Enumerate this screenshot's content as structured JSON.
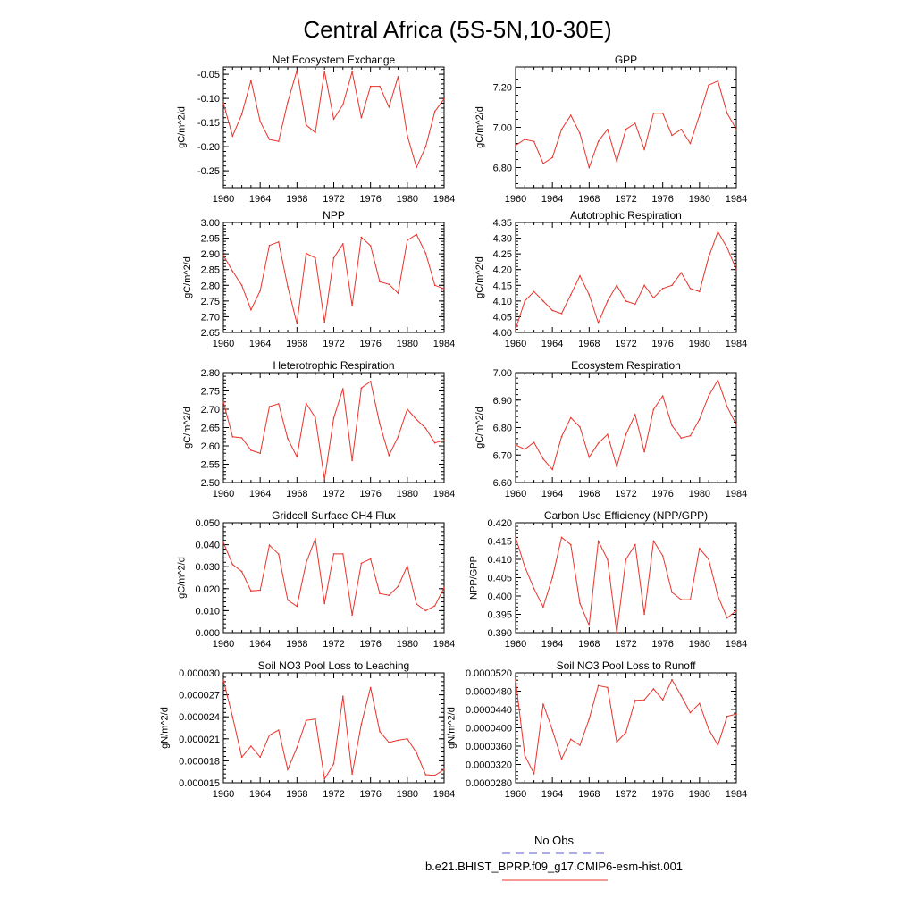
{
  "figure_title": "Central Africa (5S-5N,10-30E)",
  "legend": {
    "entries": [
      {
        "name": "No Obs",
        "color": "#5a5ad2",
        "dash": true
      },
      {
        "name": "b.e21.BHIST_BPRP.f09_g17.CMIP6-esm-hist.001",
        "color": "#e8332a",
        "dash": false
      }
    ]
  },
  "colors": {
    "series": "#e8332a",
    "axes": "#000000"
  },
  "chart_data": [
    {
      "type": "line",
      "title": "Net Ecosystem Exchange",
      "ylabel": "gC/m^2/d",
      "x": [
        1960,
        1961,
        1962,
        1963,
        1964,
        1965,
        1966,
        1967,
        1968,
        1969,
        1970,
        1971,
        1972,
        1973,
        1974,
        1975,
        1976,
        1977,
        1978,
        1979,
        1980,
        1981,
        1982,
        1983,
        1984
      ],
      "values": [
        -0.11,
        -0.178,
        -0.133,
        -0.063,
        -0.148,
        -0.185,
        -0.189,
        -0.108,
        -0.042,
        -0.155,
        -0.171,
        -0.044,
        -0.143,
        -0.113,
        -0.045,
        -0.14,
        -0.075,
        -0.075,
        -0.118,
        -0.055,
        -0.177,
        -0.243,
        -0.2,
        -0.127,
        -0.101
      ],
      "xlim": [
        1960,
        1984
      ],
      "ylim": [
        -0.285,
        -0.035
      ],
      "xticks": [
        "1960",
        "1964",
        "1968",
        "1972",
        "1976",
        "1980",
        "1984"
      ],
      "yticks": [
        "-0.05",
        "-0.10",
        "-0.15",
        "-0.20",
        "-0.25"
      ]
    },
    {
      "type": "line",
      "title": "GPP",
      "ylabel": "gC/m^2/d",
      "x": [
        1960,
        1961,
        1962,
        1963,
        1964,
        1965,
        1966,
        1967,
        1968,
        1969,
        1970,
        1971,
        1972,
        1973,
        1974,
        1975,
        1976,
        1977,
        1978,
        1979,
        1980,
        1981,
        1982,
        1983,
        1984
      ],
      "values": [
        6.91,
        6.94,
        6.93,
        6.82,
        6.85,
        6.99,
        7.06,
        6.97,
        6.8,
        6.93,
        6.99,
        6.83,
        6.99,
        7.02,
        6.89,
        7.07,
        7.07,
        6.96,
        6.99,
        6.92,
        7.06,
        7.21,
        7.23,
        7.07,
        6.99
      ],
      "xlim": [
        1960,
        1984
      ],
      "ylim": [
        6.7,
        7.3
      ],
      "xticks": [
        "1960",
        "1964",
        "1968",
        "1972",
        "1976",
        "1980",
        "1984"
      ],
      "yticks": [
        "7.20",
        "7.00",
        "6.80"
      ]
    },
    {
      "type": "line",
      "title": "NPP",
      "ylabel": "gC/m^2/d",
      "x": [
        1960,
        1961,
        1962,
        1963,
        1964,
        1965,
        1966,
        1967,
        1968,
        1969,
        1970,
        1971,
        1972,
        1973,
        1974,
        1975,
        1976,
        1977,
        1978,
        1979,
        1980,
        1981,
        1982,
        1983,
        1984
      ],
      "values": [
        2.895,
        2.845,
        2.8,
        2.722,
        2.783,
        2.927,
        2.938,
        2.796,
        2.678,
        2.902,
        2.887,
        2.682,
        2.887,
        2.932,
        2.735,
        2.953,
        2.926,
        2.811,
        2.803,
        2.775,
        2.943,
        2.962,
        2.902,
        2.8,
        2.789
      ],
      "xlim": [
        1960,
        1984
      ],
      "ylim": [
        2.65,
        3.0
      ],
      "xticks": [
        "1960",
        "1964",
        "1968",
        "1972",
        "1976",
        "1980",
        "1984"
      ],
      "yticks": [
        "3.00",
        "2.95",
        "2.90",
        "2.85",
        "2.80",
        "2.75",
        "2.70",
        "2.65"
      ]
    },
    {
      "type": "line",
      "title": "Autotrophic Respiration",
      "ylabel": "gC/m^2/d",
      "x": [
        1960,
        1961,
        1962,
        1963,
        1964,
        1965,
        1966,
        1967,
        1968,
        1969,
        1970,
        1971,
        1972,
        1973,
        1974,
        1975,
        1976,
        1977,
        1978,
        1979,
        1980,
        1981,
        1982,
        1983,
        1984
      ],
      "values": [
        4.01,
        4.1,
        4.13,
        4.1,
        4.07,
        4.06,
        4.12,
        4.18,
        4.12,
        4.03,
        4.1,
        4.15,
        4.1,
        4.09,
        4.15,
        4.11,
        4.14,
        4.15,
        4.19,
        4.14,
        4.13,
        4.24,
        4.32,
        4.27,
        4.2
      ],
      "xlim": [
        1960,
        1984
      ],
      "ylim": [
        4.0,
        4.35
      ],
      "xticks": [
        "1960",
        "1964",
        "1968",
        "1972",
        "1976",
        "1980",
        "1984"
      ],
      "yticks": [
        "4.35",
        "4.30",
        "4.25",
        "4.20",
        "4.15",
        "4.10",
        "4.05",
        "4.00"
      ]
    },
    {
      "type": "line",
      "title": "Heterotrophic Respiration",
      "ylabel": "gC/m^2/d",
      "x": [
        1960,
        1961,
        1962,
        1963,
        1964,
        1965,
        1966,
        1967,
        1968,
        1969,
        1970,
        1971,
        1972,
        1973,
        1974,
        1975,
        1976,
        1977,
        1978,
        1979,
        1980,
        1981,
        1982,
        1983,
        1984
      ],
      "values": [
        2.72,
        2.625,
        2.622,
        2.588,
        2.58,
        2.707,
        2.715,
        2.62,
        2.57,
        2.716,
        2.677,
        2.508,
        2.676,
        2.756,
        2.56,
        2.758,
        2.776,
        2.66,
        2.574,
        2.625,
        2.7,
        2.672,
        2.648,
        2.608,
        2.615
      ],
      "xlim": [
        1960,
        1984
      ],
      "ylim": [
        2.5,
        2.8
      ],
      "xticks": [
        "1960",
        "1964",
        "1968",
        "1972",
        "1976",
        "1980",
        "1984"
      ],
      "yticks": [
        "2.80",
        "2.75",
        "2.70",
        "2.65",
        "2.60",
        "2.55",
        "2.50"
      ]
    },
    {
      "type": "line",
      "title": "Ecosystem Respiration",
      "ylabel": "gC/m^2/d",
      "x": [
        1960,
        1961,
        1962,
        1963,
        1964,
        1965,
        1966,
        1967,
        1968,
        1969,
        1970,
        1971,
        1972,
        1973,
        1974,
        1975,
        1976,
        1977,
        1978,
        1979,
        1980,
        1981,
        1982,
        1983,
        1984
      ],
      "values": [
        6.737,
        6.721,
        6.746,
        6.686,
        6.647,
        6.767,
        6.836,
        6.802,
        6.692,
        6.743,
        6.775,
        6.658,
        6.775,
        6.847,
        6.712,
        6.866,
        6.915,
        6.807,
        6.762,
        6.77,
        6.83,
        6.915,
        6.973,
        6.876,
        6.81
      ],
      "xlim": [
        1960,
        1984
      ],
      "ylim": [
        6.6,
        7.0
      ],
      "xticks": [
        "1960",
        "1964",
        "1968",
        "1972",
        "1976",
        "1980",
        "1984"
      ],
      "yticks": [
        "7.00",
        "6.90",
        "6.80",
        "6.70",
        "6.60"
      ]
    },
    {
      "type": "line",
      "title": "Gridcell Surface CH4 Flux",
      "ylabel": "gC/m^2/d",
      "x": [
        1960,
        1961,
        1962,
        1963,
        1964,
        1965,
        1966,
        1967,
        1968,
        1969,
        1970,
        1971,
        1972,
        1973,
        1974,
        1975,
        1976,
        1977,
        1978,
        1979,
        1980,
        1981,
        1982,
        1983,
        1984
      ],
      "values": [
        0.041,
        0.031,
        0.0278,
        0.019,
        0.0193,
        0.0398,
        0.0357,
        0.0148,
        0.012,
        0.0317,
        0.0428,
        0.0132,
        0.0358,
        0.0358,
        0.008,
        0.0316,
        0.0335,
        0.0178,
        0.017,
        0.021,
        0.0303,
        0.013,
        0.01,
        0.0122,
        0.0205
      ],
      "xlim": [
        1960,
        1984
      ],
      "ylim": [
        0.0,
        0.05
      ],
      "xticks": [
        "1960",
        "1964",
        "1968",
        "1972",
        "1976",
        "1980",
        "1984"
      ],
      "yticks": [
        "0.050",
        "0.040",
        "0.030",
        "0.020",
        "0.010",
        "0.000"
      ]
    },
    {
      "type": "line",
      "title": "Carbon Use Efficiency (NPP/GPP)",
      "ylabel": "NPP/GPP",
      "x": [
        1960,
        1961,
        1962,
        1963,
        1964,
        1965,
        1966,
        1967,
        1968,
        1969,
        1970,
        1971,
        1972,
        1973,
        1974,
        1975,
        1976,
        1977,
        1978,
        1979,
        1980,
        1981,
        1982,
        1983,
        1984
      ],
      "values": [
        0.416,
        0.408,
        0.402,
        0.397,
        0.405,
        0.416,
        0.414,
        0.398,
        0.392,
        0.415,
        0.41,
        0.39,
        0.41,
        0.414,
        0.395,
        0.415,
        0.411,
        0.401,
        0.399,
        0.399,
        0.413,
        0.41,
        0.4,
        0.394,
        0.396
      ],
      "xlim": [
        1960,
        1984
      ],
      "ylim": [
        0.39,
        0.42
      ],
      "xticks": [
        "1960",
        "1964",
        "1968",
        "1972",
        "1976",
        "1980",
        "1984"
      ],
      "yticks": [
        "0.420",
        "0.415",
        "0.410",
        "0.405",
        "0.400",
        "0.395",
        "0.390"
      ]
    },
    {
      "type": "line",
      "title": "Soil NO3 Pool Loss to Leaching",
      "ylabel": "gN/m^2/d",
      "x": [
        1960,
        1961,
        1962,
        1963,
        1964,
        1965,
        1966,
        1967,
        1968,
        1969,
        1970,
        1971,
        1972,
        1973,
        1974,
        1975,
        1976,
        1977,
        1978,
        1979,
        1980,
        1981,
        1982,
        1983,
        1984
      ],
      "values": [
        2.9e-05,
        2.4e-05,
        1.85e-05,
        2e-05,
        1.85e-05,
        2.15e-05,
        2.22e-05,
        1.68e-05,
        1.98e-05,
        2.35e-05,
        2.37e-05,
        1.55e-05,
        1.76e-05,
        2.68e-05,
        1.62e-05,
        2.3e-05,
        2.8e-05,
        2.2e-05,
        2.05e-05,
        2.08e-05,
        2.1e-05,
        1.91e-05,
        1.61e-05,
        1.6e-05,
        1.68e-05
      ],
      "xlim": [
        1960,
        1984
      ],
      "ylim": [
        1.5e-05,
        3e-05
      ],
      "xticks": [
        "1960",
        "1964",
        "1968",
        "1972",
        "1976",
        "1980",
        "1984"
      ],
      "yticks": [
        "0.000030",
        "0.000027",
        "0.000024",
        "0.000021",
        "0.000018",
        "0.000015"
      ]
    },
    {
      "type": "line",
      "title": "Soil NO3 Pool Loss to Runoff",
      "ylabel": "gN/m^2/d",
      "x": [
        1960,
        1961,
        1962,
        1963,
        1964,
        1965,
        1966,
        1967,
        1968,
        1969,
        1970,
        1971,
        1972,
        1973,
        1974,
        1975,
        1976,
        1977,
        1978,
        1979,
        1980,
        1981,
        1982,
        1983,
        1984
      ],
      "values": [
        5.05e-05,
        3.4e-05,
        3e-05,
        4.52e-05,
        3.95e-05,
        3.32e-05,
        3.75e-05,
        3.62e-05,
        4.19e-05,
        4.92e-05,
        4.88e-05,
        3.69e-05,
        3.9e-05,
        4.6e-05,
        4.61e-05,
        4.85e-05,
        4.61e-05,
        5.05e-05,
        4.7e-05,
        4.33e-05,
        4.53e-05,
        3.97e-05,
        3.62e-05,
        4.25e-05,
        4.3e-05
      ],
      "xlim": [
        1960,
        1984
      ],
      "ylim": [
        2.8e-05,
        5.2e-05
      ],
      "xticks": [
        "1960",
        "1964",
        "1968",
        "1972",
        "1976",
        "1980",
        "1984"
      ],
      "yticks": [
        "0.0000520",
        "0.0000480",
        "0.0000440",
        "0.0000400",
        "0.0000360",
        "0.0000320",
        "0.0000280"
      ]
    }
  ]
}
